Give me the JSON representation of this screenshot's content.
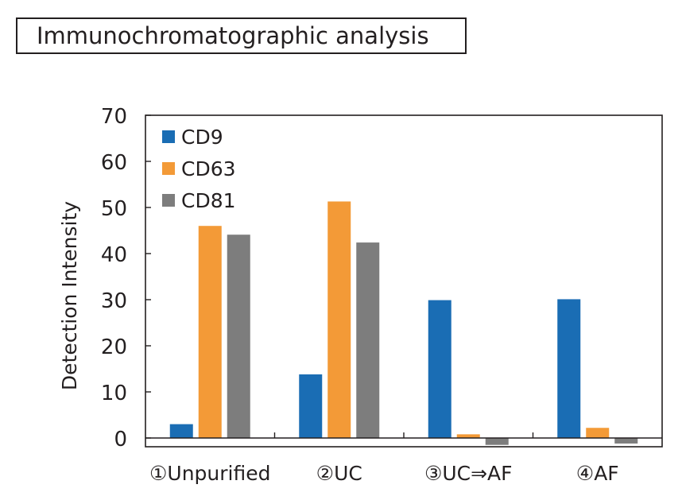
{
  "title": "Immunochromatographic analysis",
  "chart_data": {
    "type": "bar",
    "categories": [
      "①Unpurified",
      "②UC",
      "③UC⇒AF",
      "④AF"
    ],
    "series": [
      {
        "name": "CD9",
        "color": "#1a6db4",
        "values": [
          3.0,
          13.8,
          29.9,
          30.1
        ]
      },
      {
        "name": "CD63",
        "color": "#f39a37",
        "values": [
          46.0,
          51.3,
          0.8,
          2.2
        ]
      },
      {
        "name": "CD81",
        "color": "#7d7d7d",
        "values": [
          44.1,
          42.4,
          -1.5,
          -1.2
        ]
      }
    ],
    "ylabel": "Detection Intensity",
    "ylim": [
      -2,
      70
    ],
    "yticks": [
      0,
      10,
      20,
      30,
      40,
      50,
      60,
      70
    ],
    "legend_position": "top-left"
  }
}
